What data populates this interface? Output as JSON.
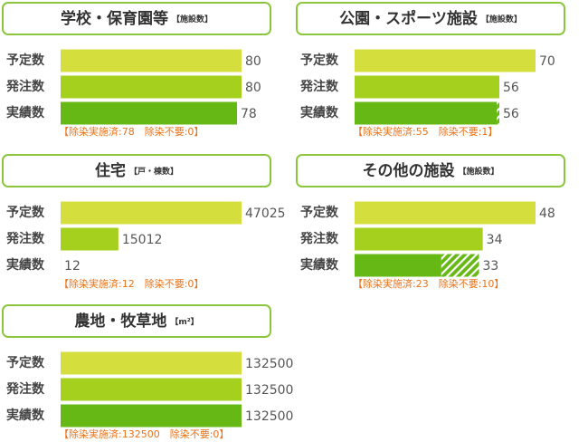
{
  "chart_data": [
    {
      "type": "bar",
      "title": "学校・保育園等",
      "unit": "【施設数】",
      "categories": [
        "予定数",
        "発注数",
        "実績数"
      ],
      "values": [
        80,
        80,
        78
      ],
      "colors": [
        "#d4df3e",
        "#a6d01e",
        "#66b814"
      ],
      "xlim": [
        0,
        80
      ],
      "breakdown": {
        "values": [
          78,
          0
        ],
        "styles": [
          "solid",
          "hatch"
        ]
      },
      "note": "【除染実施済:78　除染不要:0】"
    },
    {
      "type": "bar",
      "title": "公園・スポーツ施設",
      "unit": "【施設数】",
      "categories": [
        "予定数",
        "発注数",
        "実績数"
      ],
      "values": [
        70,
        56,
        56
      ],
      "colors": [
        "#d4df3e",
        "#a6d01e",
        "#66b814"
      ],
      "xlim": [
        0,
        70
      ],
      "breakdown": {
        "values": [
          55,
          1
        ],
        "styles": [
          "solid",
          "hatch"
        ]
      },
      "note": "【除染実施済:55　除染不要:1】"
    },
    {
      "type": "bar",
      "title": "住宅",
      "unit": "【戸・棟数】",
      "categories": [
        "予定数",
        "発注数",
        "実績数"
      ],
      "values": [
        47025,
        15012,
        12
      ],
      "colors": [
        "#d4df3e",
        "#a6d01e",
        "#66b814"
      ],
      "xlim": [
        0,
        47025
      ],
      "breakdown": {
        "values": [
          12,
          0
        ],
        "styles": [
          "solid",
          "hatch"
        ]
      },
      "note": "【除染実施済:12　除染不要:0】"
    },
    {
      "type": "bar",
      "title": "その他の施設",
      "unit": "【施設数】",
      "categories": [
        "予定数",
        "発注数",
        "実績数"
      ],
      "values": [
        48,
        34,
        33
      ],
      "colors": [
        "#d4df3e",
        "#a6d01e",
        "#66b814"
      ],
      "xlim": [
        0,
        48
      ],
      "breakdown": {
        "values": [
          23,
          10
        ],
        "styles": [
          "solid",
          "hatch"
        ]
      },
      "note": "【除染実施済:23　除染不要:10】"
    },
    {
      "type": "bar",
      "title": "農地・牧草地",
      "unit": "【m²】",
      "categories": [
        "予定数",
        "発注数",
        "実績数"
      ],
      "values": [
        132500,
        132500,
        132500
      ],
      "colors": [
        "#d4df3e",
        "#a6d01e",
        "#66b814"
      ],
      "xlim": [
        0,
        132500
      ],
      "breakdown": {
        "values": [
          132500,
          0
        ],
        "styles": [
          "solid",
          "hatch"
        ]
      },
      "note": "【除染実施済:132500　除染不要:0】"
    }
  ]
}
